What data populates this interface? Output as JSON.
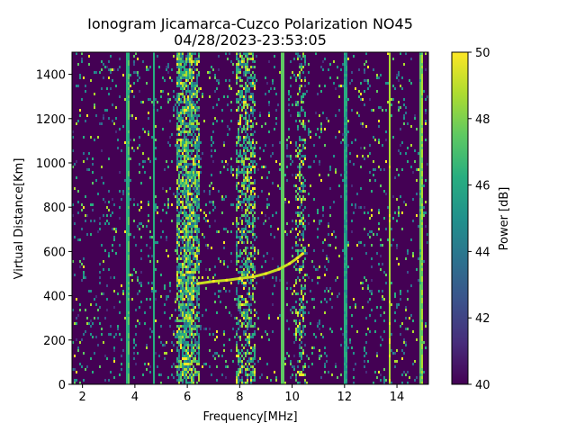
{
  "chart_data": {
    "type": "heatmap",
    "title": "Ionogram Jicamarca-Cuzco Polarization NO45",
    "subtitle": "04/28/2023-23:53:05",
    "xlabel": "Frequency[MHz]",
    "ylabel": "Virtual Distance[Km]",
    "xlim": [
      1.6,
      15.2
    ],
    "ylim": [
      0,
      1500
    ],
    "x_ticks": [
      2,
      4,
      6,
      8,
      10,
      12,
      14
    ],
    "y_ticks": [
      0,
      200,
      400,
      600,
      800,
      1000,
      1200,
      1400
    ],
    "colorbar": {
      "label": "Power [dB]",
      "range": [
        40,
        50
      ],
      "ticks": [
        40,
        42,
        44,
        46,
        48,
        50
      ],
      "colormap": "viridis"
    },
    "grid": false,
    "bright_frequency_bands_mhz": [
      {
        "center": 6.0,
        "width": 0.9,
        "intensity": 0.85
      },
      {
        "center": 8.2,
        "width": 0.7,
        "intensity": 0.6
      },
      {
        "center": 9.6,
        "width": 0.15,
        "intensity": 0.9
      },
      {
        "center": 10.3,
        "width": 0.4,
        "intensity": 0.4
      },
      {
        "center": 12.0,
        "width": 0.15,
        "intensity": 0.7
      },
      {
        "center": 13.7,
        "width": 0.1,
        "intensity": 1.0
      },
      {
        "center": 14.9,
        "width": 0.1,
        "intensity": 1.0
      },
      {
        "center": 3.7,
        "width": 0.08,
        "intensity": 0.9
      },
      {
        "center": 4.7,
        "width": 0.08,
        "intensity": 0.7
      }
    ],
    "echo_trace": {
      "frequency_mhz": [
        6.4,
        7.0,
        7.5,
        8.0,
        8.5,
        9.0,
        9.5,
        9.9,
        10.2,
        10.4
      ],
      "virtual_distance_km": [
        455,
        465,
        470,
        478,
        485,
        500,
        520,
        545,
        570,
        590
      ]
    }
  }
}
